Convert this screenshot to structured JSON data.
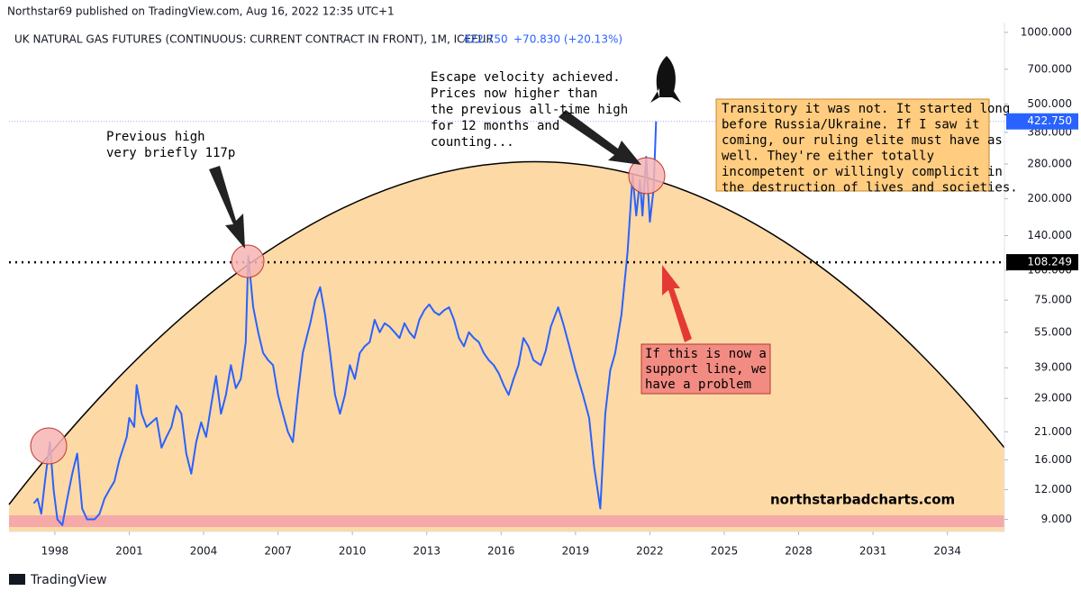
{
  "header": {
    "publisher": "Northstar69 published on TradingView.com, Aug 16, 2022 12:35 UTC+1"
  },
  "footer": {
    "brand": "TradingView"
  },
  "chart_data": {
    "type": "line",
    "symbol": "UK NATURAL GAS FUTURES (CONTINUOUS: CURRENT CONTRACT IN FRONT), 1M, ICEEUR",
    "last": "422.750",
    "change": "+70.830 (+20.13%)",
    "watermark": "northstarbadcharts.com",
    "log_scale": true,
    "grid": false,
    "xlim": [
      1996.15,
      2036.3
    ],
    "xticks": [
      1998,
      2001,
      2004,
      2007,
      2010,
      2013,
      2016,
      2019,
      2022,
      2025,
      2028,
      2031,
      2034
    ],
    "ylim": [
      8,
      1100
    ],
    "yticks": [
      {
        "value": 9,
        "label": "9.000"
      },
      {
        "value": 12,
        "label": "12.000"
      },
      {
        "value": 16,
        "label": "16.000"
      },
      {
        "value": 21,
        "label": "21.000"
      },
      {
        "value": 29,
        "label": "29.000"
      },
      {
        "value": 39,
        "label": "39.000"
      },
      {
        "value": 55,
        "label": "55.000"
      },
      {
        "value": 75,
        "label": "75.000"
      },
      {
        "value": 100,
        "label": "100.000"
      },
      {
        "value": 140,
        "label": "140.000"
      },
      {
        "value": 200,
        "label": "200.000"
      },
      {
        "value": 280,
        "label": "280.000"
      },
      {
        "value": 380,
        "label": "380.000"
      },
      {
        "value": 500,
        "label": "500.000"
      },
      {
        "value": 700,
        "label": "700.000"
      },
      {
        "value": 1000,
        "label": "1000.000"
      }
    ],
    "x": [
      1997.15,
      1997.3,
      1997.45,
      1997.6,
      1997.8,
      1997.95,
      1998.1,
      1998.3,
      1998.5,
      1998.7,
      1998.9,
      1999.1,
      1999.3,
      1999.6,
      1999.8,
      2000.0,
      2000.2,
      2000.4,
      2000.6,
      2000.9,
      2001.0,
      2001.2,
      2001.3,
      2001.5,
      2001.7,
      2001.9,
      2002.1,
      2002.3,
      2002.5,
      2002.7,
      2002.9,
      2003.1,
      2003.3,
      2003.5,
      2003.7,
      2003.9,
      2004.1,
      2004.3,
      2004.5,
      2004.7,
      2004.9,
      2005.1,
      2005.3,
      2005.5,
      2005.7,
      2005.8,
      2006.0,
      2006.2,
      2006.4,
      2006.6,
      2006.8,
      2007.0,
      2007.2,
      2007.4,
      2007.6,
      2007.8,
      2008.0,
      2008.3,
      2008.5,
      2008.7,
      2008.9,
      2009.1,
      2009.3,
      2009.5,
      2009.7,
      2009.9,
      2010.1,
      2010.3,
      2010.5,
      2010.7,
      2010.9,
      2011.1,
      2011.3,
      2011.5,
      2011.7,
      2011.9,
      2012.1,
      2012.3,
      2012.5,
      2012.7,
      2012.9,
      2013.1,
      2013.3,
      2013.5,
      2013.7,
      2013.9,
      2014.1,
      2014.3,
      2014.5,
      2014.7,
      2014.9,
      2015.1,
      2015.3,
      2015.5,
      2015.7,
      2015.9,
      2016.1,
      2016.3,
      2016.5,
      2016.7,
      2016.9,
      2017.1,
      2017.3,
      2017.6,
      2017.8,
      2018.0,
      2018.3,
      2018.5,
      2018.75,
      2019.0,
      2019.3,
      2019.55,
      2019.75,
      2020.0,
      2020.2,
      2020.4,
      2020.6,
      2020.85,
      2021.1,
      2021.3,
      2021.45,
      2021.6,
      2021.7,
      2021.85,
      2022.0,
      2022.15,
      2022.25
    ],
    "series": [
      {
        "name": "UK NATURAL GAS FUTURES",
        "color": "#2962ff",
        "values": [
          10.5,
          11,
          9.5,
          13,
          19,
          12,
          9,
          8.5,
          11,
          14,
          17,
          10,
          9,
          9,
          9.5,
          11,
          12,
          13,
          16,
          20,
          24,
          22,
          33,
          25,
          22,
          23,
          24,
          18,
          20,
          22,
          27,
          25,
          17,
          14,
          19,
          23,
          20,
          27,
          36,
          25,
          30,
          40,
          32,
          35,
          50,
          115,
          70,
          55,
          45,
          42,
          40,
          30,
          25,
          21,
          19,
          30,
          45,
          60,
          75,
          85,
          65,
          45,
          30,
          25,
          30,
          40,
          35,
          45,
          48,
          50,
          62,
          55,
          60,
          58,
          55,
          52,
          60,
          55,
          52,
          62,
          68,
          72,
          67,
          65,
          68,
          70,
          62,
          52,
          48,
          55,
          52,
          50,
          45,
          42,
          40,
          37,
          33,
          30,
          35,
          40,
          52,
          48,
          42,
          40,
          46,
          58,
          70,
          60,
          48,
          38,
          30,
          24,
          15,
          10,
          25,
          38,
          45,
          65,
          120,
          250,
          170,
          240,
          170,
          300,
          160,
          220,
          422.75
        ]
      }
    ],
    "price_tags": [
      {
        "value": 422.75,
        "label": "422.750",
        "color": "#2962ff"
      },
      {
        "value": 108.249,
        "label": "108.249",
        "color": "#000000"
      }
    ],
    "annotations": [
      {
        "lines": [
          "Previous high",
          "very briefly 117p"
        ]
      },
      {
        "lines": [
          "Escape velocity achieved.",
          "Prices now higher than",
          "the previous all-time high",
          "for 12 months and",
          "counting..."
        ]
      },
      {
        "lines": [
          "Transitory it was not. It started long",
          "before Russia/Ukraine. If I saw it",
          "coming, our ruling elite must have as",
          "well. They're either totally",
          "incompetent or willingly complicit in",
          "the destruction of lives and societies."
        ]
      },
      {
        "lines": [
          "If this is now a",
          "support line, we",
          "have a problem"
        ]
      }
    ]
  }
}
